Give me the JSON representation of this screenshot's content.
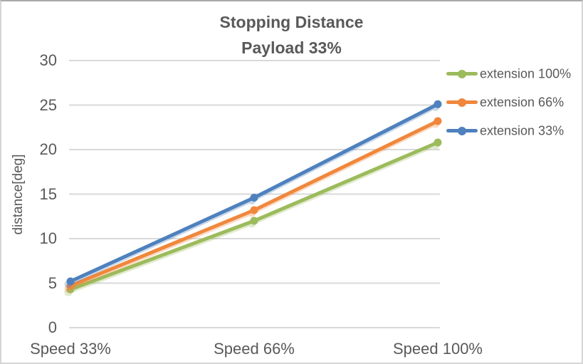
{
  "chart_data": {
    "type": "line",
    "title": "Stopping Distance",
    "subtitle": "Payload 33%",
    "ylabel": "distance[deg]",
    "xlabel": "",
    "categories": [
      "Speed 33%",
      "Speed 66%",
      "Speed 100%"
    ],
    "series": [
      {
        "name": "extension 100%",
        "color": "#9CBB5C",
        "values": [
          4.3,
          12.0,
          20.8
        ]
      },
      {
        "name": "extension 66%",
        "color": "#F0873C",
        "values": [
          4.7,
          13.2,
          23.2
        ]
      },
      {
        "name": "extension 33%",
        "color": "#4E81BD",
        "values": [
          5.2,
          14.6,
          25.1
        ]
      }
    ],
    "ylim": [
      0,
      30
    ],
    "ytick_step": 5,
    "ytick_labels": [
      "30",
      "25",
      "20",
      "15",
      "10",
      "5",
      "0"
    ],
    "legend_position": "right",
    "grid": true,
    "marker": "circle"
  },
  "colors": {
    "text": "#595959",
    "gridline": "#D9D9D9",
    "background": "#FFFFFF",
    "border": "#D5D5D5"
  }
}
